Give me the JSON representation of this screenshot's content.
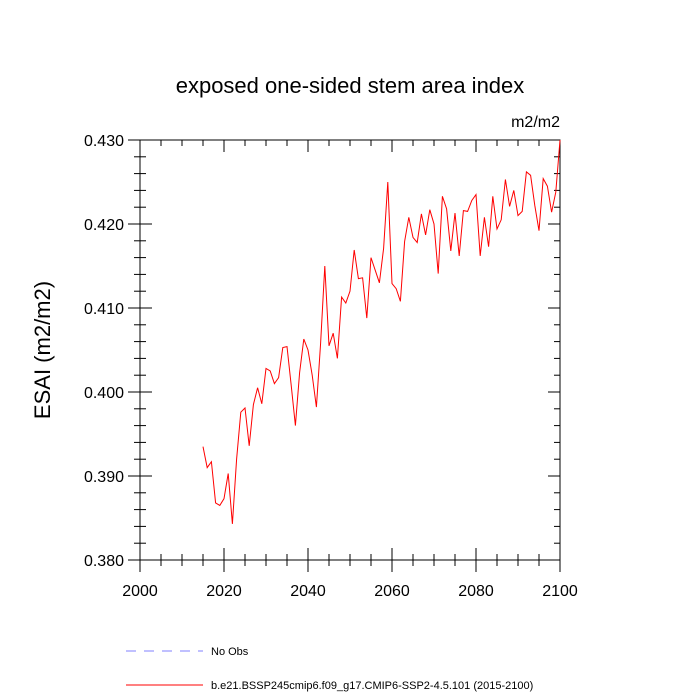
{
  "chart_data": {
    "type": "line",
    "title": "exposed one-sided stem area index",
    "units": "m2/m2",
    "ylabel": "ESAI  (m2/m2)",
    "xlabel": "",
    "xlim": [
      2000,
      2100
    ],
    "ylim": [
      0.38,
      0.43
    ],
    "xticks": [
      2000,
      2020,
      2040,
      2060,
      2080,
      2100
    ],
    "xtick_labels": [
      "2000",
      "2020",
      "2040",
      "2060",
      "2080",
      "2100"
    ],
    "yticks": [
      0.38,
      0.39,
      0.4,
      0.41,
      0.42,
      0.43
    ],
    "ytick_labels": [
      "0.380",
      "0.390",
      "0.400",
      "0.410",
      "0.420",
      "0.430"
    ],
    "series": [
      {
        "name": "b.e21.BSSP245cmip6.f09_g17.CMIP6-SSP2-4.5.101 (2015-2100)",
        "color": "#ff0000",
        "style": "solid",
        "x": [
          2015,
          2016,
          2017,
          2018,
          2019,
          2020,
          2021,
          2022,
          2023,
          2024,
          2025,
          2026,
          2027,
          2028,
          2029,
          2030,
          2031,
          2032,
          2033,
          2034,
          2035,
          2036,
          2037,
          2038,
          2039,
          2040,
          2041,
          2042,
          2043,
          2044,
          2045,
          2046,
          2047,
          2048,
          2049,
          2050,
          2051,
          2052,
          2053,
          2054,
          2055,
          2056,
          2057,
          2058,
          2059,
          2060,
          2061,
          2062,
          2063,
          2064,
          2065,
          2066,
          2067,
          2068,
          2069,
          2070,
          2071,
          2072,
          2073,
          2074,
          2075,
          2076,
          2077,
          2078,
          2079,
          2080,
          2081,
          2082,
          2083,
          2084,
          2085,
          2086,
          2087,
          2088,
          2089,
          2090,
          2091,
          2092,
          2093,
          2094,
          2095,
          2096,
          2097,
          2098,
          2099,
          2100
        ],
        "values": [
          0.3935,
          0.391,
          0.3917,
          0.3868,
          0.3865,
          0.3873,
          0.3903,
          0.3843,
          0.392,
          0.3976,
          0.3981,
          0.3936,
          0.3985,
          0.4005,
          0.3986,
          0.4028,
          0.4025,
          0.401,
          0.4017,
          0.4053,
          0.4054,
          0.4008,
          0.396,
          0.4023,
          0.4063,
          0.405,
          0.402,
          0.3982,
          0.4058,
          0.415,
          0.4055,
          0.407,
          0.404,
          0.4113,
          0.4106,
          0.412,
          0.4169,
          0.4135,
          0.4136,
          0.4088,
          0.416,
          0.4145,
          0.413,
          0.4171,
          0.425,
          0.4129,
          0.4123,
          0.4108,
          0.4179,
          0.4208,
          0.4184,
          0.4178,
          0.4212,
          0.4187,
          0.4217,
          0.42,
          0.4141,
          0.4233,
          0.4218,
          0.4168,
          0.4213,
          0.4162,
          0.4216,
          0.4215,
          0.4228,
          0.4235,
          0.4162,
          0.4208,
          0.4173,
          0.4233,
          0.4194,
          0.4205,
          0.4253,
          0.4221,
          0.424,
          0.421,
          0.4215,
          0.4262,
          0.4258,
          0.4222,
          0.4192,
          0.4254,
          0.4245,
          0.4214,
          0.4238,
          0.43
        ]
      }
    ],
    "legend": [
      {
        "label": "No Obs",
        "color": "#8080ff",
        "style": "dashed"
      },
      {
        "label": "b.e21.BSSP245cmip6.f09_g17.CMIP6-SSP2-4.5.101 (2015-2100)",
        "color": "#ff0000",
        "style": "solid"
      }
    ],
    "legend_position": "bottom-left",
    "grid": false
  }
}
